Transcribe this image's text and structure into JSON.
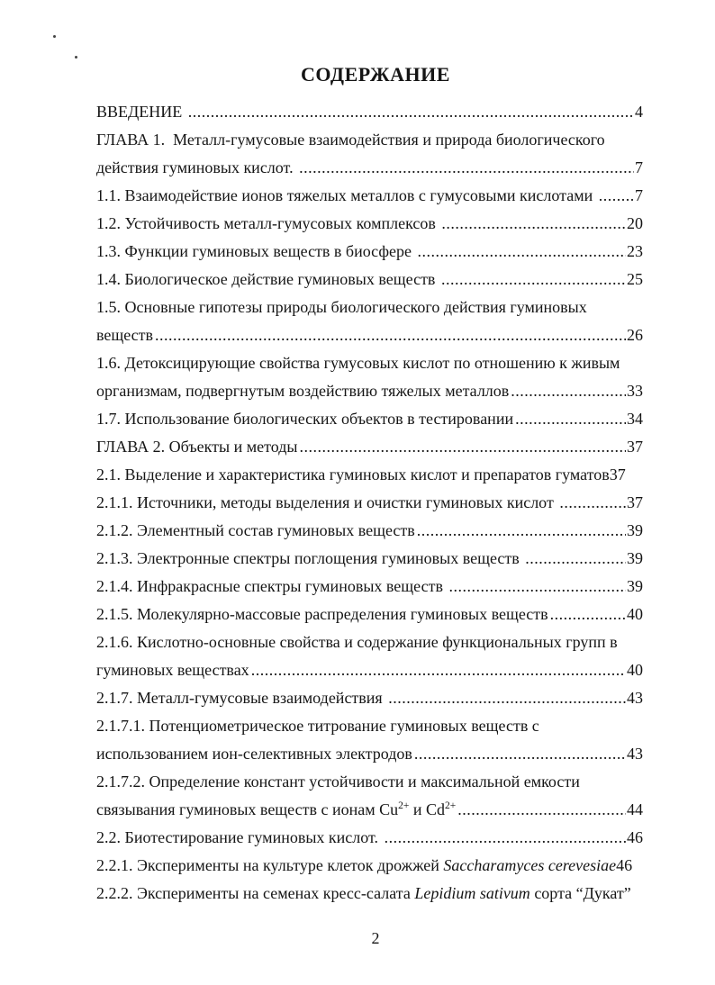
{
  "page": {
    "title": "СОДЕРЖАНИЕ",
    "page_number": "2"
  },
  "toc_lines": [
    {
      "segments": [
        {
          "t": "ВВЕДЕНИЕ "
        }
      ],
      "leader": true,
      "page": "4"
    },
    {
      "segments": [
        {
          "t": "ГЛАВА 1.  Металл-гумусовые взаимодействия и природа биологического"
        }
      ],
      "leader": false,
      "page": ""
    },
    {
      "segments": [
        {
          "t": "действия гуминовых кислот. "
        }
      ],
      "leader": true,
      "page": "7"
    },
    {
      "segments": [
        {
          "t": "1.1. Взаимодействие ионов тяжелых металлов с гумусовыми кислотами "
        }
      ],
      "leader": true,
      "page": "7"
    },
    {
      "segments": [
        {
          "t": "1.2. Устойчивость металл-гумусовых комплексов "
        }
      ],
      "leader": true,
      "page": "20"
    },
    {
      "segments": [
        {
          "t": "1.3. Функции гуминовых веществ в биосфере "
        }
      ],
      "leader": true,
      "page": "23"
    },
    {
      "segments": [
        {
          "t": "1.4. Биологическое действие гуминовых веществ "
        }
      ],
      "leader": true,
      "page": "25"
    },
    {
      "segments": [
        {
          "t": "1.5. Основные гипотезы природы биологического действия гуминовых"
        }
      ],
      "leader": false,
      "page": ""
    },
    {
      "segments": [
        {
          "t": "веществ"
        }
      ],
      "leader": true,
      "page": "26"
    },
    {
      "segments": [
        {
          "t": "1.6. Детоксицирующие свойства гумусовых кислот по отношению к живым"
        }
      ],
      "leader": false,
      "page": ""
    },
    {
      "segments": [
        {
          "t": "организмам, подвергнутым воздействию тяжелых металлов"
        }
      ],
      "leader": true,
      "page": "33"
    },
    {
      "segments": [
        {
          "t": "1.7. Использование биологических объектов в тестировании"
        }
      ],
      "leader": true,
      "page": "34"
    },
    {
      "segments": [
        {
          "t": "ГЛАВА 2. Объекты и методы"
        }
      ],
      "leader": true,
      "page": "37"
    },
    {
      "segments": [
        {
          "t": "2.1. Выделение и характеристика гуминовых кислот и препаратов гуматов"
        }
      ],
      "leader": false,
      "page": "37"
    },
    {
      "segments": [
        {
          "t": "2.1.1. Источники, методы выделения и очистки гуминовых кислот "
        }
      ],
      "leader": true,
      "page": "37"
    },
    {
      "segments": [
        {
          "t": "2.1.2. Элементный состав гуминовых веществ"
        }
      ],
      "leader": true,
      "page": "39"
    },
    {
      "segments": [
        {
          "t": "2.1.3. Электронные спектры поглощения гуминовых веществ "
        }
      ],
      "leader": true,
      "page": "39"
    },
    {
      "segments": [
        {
          "t": "2.1.4. Инфракрасные спектры гуминовых веществ "
        }
      ],
      "leader": true,
      "page": "39"
    },
    {
      "segments": [
        {
          "t": "2.1.5. Молекулярно-массовые распределения гуминовых веществ"
        }
      ],
      "leader": true,
      "page": "40"
    },
    {
      "segments": [
        {
          "t": "2.1.6. Кислотно-основные свойства и содержание функциональных групп в"
        }
      ],
      "leader": false,
      "page": ""
    },
    {
      "segments": [
        {
          "t": "гуминовых веществах"
        }
      ],
      "leader": true,
      "page": "40"
    },
    {
      "segments": [
        {
          "t": "2.1.7. Металл-гумусовые взаимодействия "
        }
      ],
      "leader": true,
      "page": "43"
    },
    {
      "segments": [
        {
          "t": "2.1.7.1. Потенциометрическое титрование гуминовых веществ с"
        }
      ],
      "leader": false,
      "page": ""
    },
    {
      "segments": [
        {
          "t": "использованием ион-селективных электродов"
        }
      ],
      "leader": true,
      "page": "43"
    },
    {
      "segments": [
        {
          "t": "2.1.7.2. Определение констант устойчивости и максимальной емкости"
        }
      ],
      "leader": false,
      "page": ""
    },
    {
      "segments": [
        {
          "t": "связывания гуминовых веществ с ионам Cu"
        },
        {
          "t": "2+",
          "style": "sup"
        },
        {
          "t": " и Cd"
        },
        {
          "t": "2+",
          "style": "sup"
        }
      ],
      "leader": true,
      "page": "44"
    },
    {
      "segments": [
        {
          "t": "2.2. Биотестирование гуминовых кислот. "
        }
      ],
      "leader": true,
      "page": "46"
    },
    {
      "segments": [
        {
          "t": "2.2.1. Эксперименты на культуре клеток дрожжей "
        },
        {
          "t": "Saccharamyces cerevesiae",
          "style": "italic"
        }
      ],
      "leader": false,
      "page": "46"
    },
    {
      "segments": [
        {
          "t": "2.2.2. Эксперименты на семенах кресс-салата "
        },
        {
          "t": "Lepidium sativum",
          "style": "italic"
        },
        {
          "t": " сорта “Дукат”"
        }
      ],
      "leader": false,
      "page": ""
    }
  ]
}
